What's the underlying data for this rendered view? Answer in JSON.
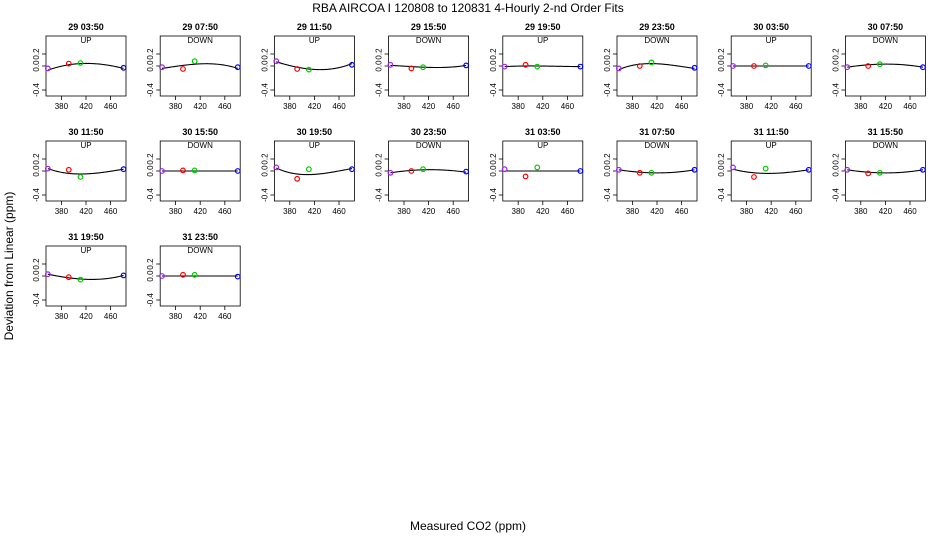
{
  "title": "RBA   AIRCOA I   120808 to 120831   4-Hourly 2-nd Order Fits",
  "xlabel": "Measured CO2 (ppm)",
  "ylabel": "Deviation from Linear (ppm)",
  "colors": {
    "std1": "#a020f0",
    "std2": "#ff0000",
    "std3": "#00cc00",
    "std4": "#0000ff",
    "curve": "#000000",
    "frame": "#000000"
  },
  "chart_data": {
    "type": "scatter",
    "xlim": [
      355,
      485
    ],
    "ylim": [
      -0.5,
      0.5
    ],
    "xticks": [
      380,
      420,
      460
    ],
    "yticks": [
      -0.4,
      0.0,
      0.2
    ],
    "ytick_labels": [
      "-0.4",
      "0.0",
      "0.2"
    ],
    "standards_x": [
      358,
      392,
      411,
      481
    ],
    "panels": [
      {
        "title": "29 03:50",
        "direction": "UP",
        "y": [
          -0.04,
          0.04,
          0.05,
          -0.03
        ],
        "curve": [
          -0.07,
          0.02,
          0.04,
          -0.04
        ]
      },
      {
        "title": "29 07:50",
        "direction": "DOWN",
        "y": [
          -0.02,
          -0.05,
          0.08,
          -0.02
        ],
        "curve": [
          -0.04,
          0.01,
          0.03,
          -0.04
        ]
      },
      {
        "title": "29 11:50",
        "direction": "UP",
        "y": [
          0.08,
          -0.05,
          -0.06,
          0.02
        ],
        "curve": [
          0.07,
          -0.02,
          -0.05,
          0.04
        ]
      },
      {
        "title": "29 15:50",
        "direction": "DOWN",
        "y": [
          0.02,
          -0.04,
          -0.02,
          0.01
        ],
        "curve": [
          0.01,
          -0.01,
          -0.02,
          0.01
        ]
      },
      {
        "title": "29 19:50",
        "direction": "UP",
        "y": [
          -0.01,
          0.02,
          -0.01,
          -0.01
        ],
        "curve": [
          -0.01,
          0.0,
          0.0,
          -0.01
        ]
      },
      {
        "title": "29 23:50",
        "direction": "DOWN",
        "y": [
          -0.04,
          0.0,
          0.06,
          -0.03
        ],
        "curve": [
          -0.06,
          0.03,
          0.04,
          -0.04
        ]
      },
      {
        "title": "30 03:50",
        "direction": "UP",
        "y": [
          0.0,
          0.0,
          0.01,
          0.0
        ],
        "curve": [
          0.0,
          0.0,
          0.0,
          0.0
        ]
      },
      {
        "title": "30 07:50",
        "direction": "DOWN",
        "y": [
          -0.02,
          0.0,
          0.03,
          -0.02
        ],
        "curve": [
          -0.02,
          0.02,
          0.03,
          -0.02
        ]
      },
      {
        "title": "30 11:50",
        "direction": "UP",
        "y": [
          0.04,
          0.02,
          -0.1,
          0.03
        ],
        "curve": [
          0.04,
          -0.04,
          -0.05,
          0.03
        ]
      },
      {
        "title": "30 15:50",
        "direction": "DOWN",
        "y": [
          0.0,
          0.01,
          0.01,
          0.0
        ],
        "curve": [
          0.0,
          0.0,
          0.0,
          0.0
        ]
      },
      {
        "title": "30 19:50",
        "direction": "UP",
        "y": [
          0.06,
          -0.13,
          0.03,
          0.03
        ],
        "curve": [
          0.05,
          -0.05,
          -0.06,
          0.04
        ]
      },
      {
        "title": "30 23:50",
        "direction": "DOWN",
        "y": [
          -0.03,
          0.0,
          0.03,
          -0.01
        ],
        "curve": [
          -0.03,
          0.01,
          0.02,
          -0.02
        ]
      },
      {
        "title": "31 03:50",
        "direction": "UP",
        "y": [
          0.03,
          -0.09,
          0.06,
          0.0
        ],
        "curve": [
          0.0,
          0.0,
          0.0,
          0.0
        ]
      },
      {
        "title": "31 07:50",
        "direction": "DOWN",
        "y": [
          0.02,
          -0.03,
          -0.03,
          0.02
        ],
        "curve": [
          0.02,
          -0.02,
          -0.03,
          0.02
        ]
      },
      {
        "title": "31 11:50",
        "direction": "UP",
        "y": [
          0.06,
          -0.1,
          0.04,
          0.02
        ],
        "curve": [
          0.03,
          -0.03,
          -0.04,
          0.02
        ]
      },
      {
        "title": "31 15:50",
        "direction": "DOWN",
        "y": [
          0.02,
          -0.04,
          -0.03,
          0.02
        ],
        "curve": [
          0.02,
          -0.02,
          -0.03,
          0.02
        ]
      },
      {
        "title": "31 19:50",
        "direction": "UP",
        "y": [
          0.03,
          -0.02,
          -0.06,
          0.01
        ],
        "curve": [
          0.03,
          -0.03,
          -0.05,
          0.01
        ]
      },
      {
        "title": "31 23:50",
        "direction": "DOWN",
        "y": [
          0.0,
          0.02,
          0.02,
          -0.01
        ],
        "curve": [
          0.0,
          0.0,
          0.0,
          0.0
        ]
      }
    ]
  }
}
